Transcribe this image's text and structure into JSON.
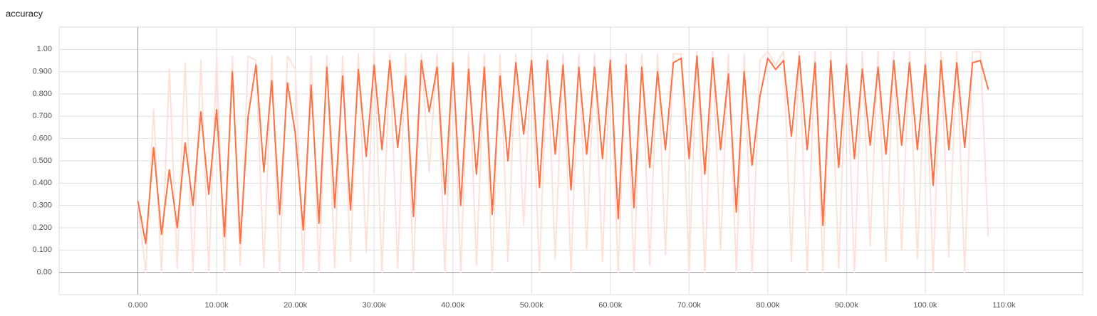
{
  "chart_data": {
    "type": "line",
    "title": "accuracy",
    "x": [
      0,
      1000,
      2000,
      3000,
      4000,
      5000,
      6000,
      7000,
      8000,
      9000,
      10000,
      11000,
      12000,
      13000,
      14000,
      15000,
      16000,
      17000,
      18000,
      19000,
      20000,
      21000,
      22000,
      23000,
      24000,
      25000,
      26000,
      27000,
      28000,
      29000,
      30000,
      31000,
      32000,
      33000,
      34000,
      35000,
      36000,
      37000,
      38000,
      39000,
      40000,
      41000,
      42000,
      43000,
      44000,
      45000,
      46000,
      47000,
      48000,
      49000,
      50000,
      51000,
      52000,
      53000,
      54000,
      55000,
      56000,
      57000,
      58000,
      59000,
      60000,
      61000,
      62000,
      63000,
      64000,
      65000,
      66000,
      67000,
      68000,
      69000,
      70000,
      71000,
      72000,
      73000,
      74000,
      75000,
      76000,
      77000,
      78000,
      79000,
      80000,
      81000,
      82000,
      83000,
      84000,
      85000,
      86000,
      87000,
      88000,
      89000,
      90000,
      91000,
      92000,
      93000,
      94000,
      95000,
      96000,
      97000,
      98000,
      99000,
      100000,
      101000,
      102000,
      103000,
      104000,
      105000,
      106000,
      107000,
      108000
    ],
    "series": [
      {
        "color": "#fde1d8",
        "values": [
          0.31,
          0.0,
          0.73,
          0.0,
          0.91,
          0.02,
          0.94,
          0.0,
          0.95,
          0.0,
          0.96,
          0.0,
          0.97,
          0.03,
          0.97,
          0.95,
          0.02,
          0.97,
          0.0,
          0.97,
          0.91,
          0.0,
          0.97,
          0.0,
          0.97,
          0.02,
          0.97,
          0.05,
          0.98,
          0.09,
          0.98,
          0.0,
          0.98,
          0.02,
          0.98,
          0.0,
          0.98,
          0.45,
          0.98,
          0.0,
          0.98,
          0.0,
          0.98,
          0.03,
          0.98,
          0.0,
          0.98,
          0.05,
          0.98,
          0.21,
          0.98,
          0.0,
          0.98,
          0.06,
          0.98,
          0.0,
          0.98,
          0.1,
          0.98,
          0.05,
          0.98,
          0.0,
          0.98,
          0.0,
          0.98,
          0.03,
          0.98,
          0.08,
          0.98,
          0.98,
          0.0,
          0.99,
          0.0,
          0.99,
          0.1,
          0.98,
          0.0,
          0.98,
          0.0,
          0.95,
          0.99,
          0.93,
          0.99,
          0.05,
          0.99,
          0.0,
          0.99,
          0.0,
          0.99,
          0.02,
          0.99,
          0.0,
          0.99,
          0.12,
          0.99,
          0.05,
          0.99,
          0.1,
          0.99,
          0.06,
          0.99,
          0.0,
          0.99,
          0.07,
          0.99,
          0.0,
          0.99,
          0.99,
          0.16
        ]
      },
      {
        "color": "#ff7043",
        "values": [
          0.32,
          0.13,
          0.56,
          0.17,
          0.46,
          0.2,
          0.58,
          0.3,
          0.72,
          0.35,
          0.73,
          0.16,
          0.9,
          0.13,
          0.7,
          0.93,
          0.45,
          0.86,
          0.26,
          0.85,
          0.62,
          0.19,
          0.84,
          0.22,
          0.92,
          0.29,
          0.88,
          0.28,
          0.91,
          0.52,
          0.93,
          0.55,
          0.95,
          0.56,
          0.88,
          0.25,
          0.95,
          0.72,
          0.92,
          0.35,
          0.94,
          0.3,
          0.91,
          0.44,
          0.92,
          0.26,
          0.88,
          0.5,
          0.94,
          0.62,
          0.95,
          0.38,
          0.95,
          0.53,
          0.93,
          0.37,
          0.92,
          0.53,
          0.92,
          0.51,
          0.95,
          0.24,
          0.93,
          0.29,
          0.92,
          0.47,
          0.9,
          0.55,
          0.94,
          0.96,
          0.51,
          0.97,
          0.44,
          0.96,
          0.55,
          0.89,
          0.27,
          0.9,
          0.48,
          0.79,
          0.96,
          0.91,
          0.95,
          0.61,
          0.97,
          0.55,
          0.94,
          0.21,
          0.95,
          0.47,
          0.93,
          0.51,
          0.91,
          0.57,
          0.92,
          0.53,
          0.95,
          0.57,
          0.94,
          0.55,
          0.93,
          0.39,
          0.95,
          0.55,
          0.94,
          0.56,
          0.94,
          0.95,
          0.82
        ]
      }
    ],
    "xlim": [
      -10000,
      120000
    ],
    "xticks": [
      {
        "value": 0,
        "label": "0.000"
      },
      {
        "value": 10000,
        "label": "10.00k"
      },
      {
        "value": 20000,
        "label": "20.00k"
      },
      {
        "value": 30000,
        "label": "30.00k"
      },
      {
        "value": 40000,
        "label": "40.00k"
      },
      {
        "value": 50000,
        "label": "50.00k"
      },
      {
        "value": 60000,
        "label": "60.00k"
      },
      {
        "value": 70000,
        "label": "70.00k"
      },
      {
        "value": 80000,
        "label": "80.00k"
      },
      {
        "value": 90000,
        "label": "90.00k"
      },
      {
        "value": 100000,
        "label": "100.0k"
      },
      {
        "value": 110000,
        "label": "110.0k"
      }
    ],
    "ylim": [
      -0.1,
      1.1
    ],
    "yticks": [
      {
        "value": 0,
        "label": "0.00"
      },
      {
        "value": 0.1,
        "label": "0.100"
      },
      {
        "value": 0.2,
        "label": "0.200"
      },
      {
        "value": 0.3,
        "label": "0.300"
      },
      {
        "value": 0.4,
        "label": "0.400"
      },
      {
        "value": 0.5,
        "label": "0.500"
      },
      {
        "value": 0.6,
        "label": "0.600"
      },
      {
        "value": 0.7,
        "label": "0.700"
      },
      {
        "value": 0.8,
        "label": "0.800"
      },
      {
        "value": 0.9,
        "label": "0.900"
      },
      {
        "value": 1,
        "label": "1.00"
      }
    ],
    "grid": true
  }
}
